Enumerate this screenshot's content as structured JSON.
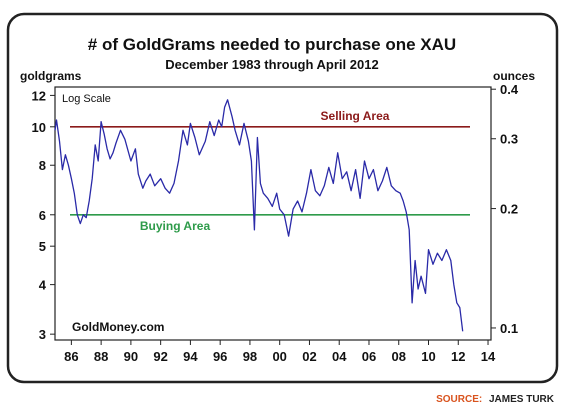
{
  "chart_data": {
    "type": "line",
    "title": "# of GoldGrams needed to purchase one XAU",
    "subtitle": "December 1983 through April 2012",
    "ylabel_left": "goldgrams",
    "ylabel_right": "ounces",
    "scale_note": "Log Scale",
    "watermark": "GoldMoney.com",
    "source_label": "SOURCE:",
    "source_name": "JAMES TURK",
    "xlim": [
      1984.9,
      2014.2
    ],
    "ylim": [
      2.9,
      12.6
    ],
    "y_scale": "log",
    "x_ticks": [
      {
        "value": 1986,
        "label": "86"
      },
      {
        "value": 1988,
        "label": "88"
      },
      {
        "value": 1990,
        "label": "90"
      },
      {
        "value": 1992,
        "label": "92"
      },
      {
        "value": 1994,
        "label": "94"
      },
      {
        "value": 1996,
        "label": "96"
      },
      {
        "value": 1998,
        "label": "98"
      },
      {
        "value": 2000,
        "label": "00"
      },
      {
        "value": 2002,
        "label": "02"
      },
      {
        "value": 2004,
        "label": "04"
      },
      {
        "value": 2006,
        "label": "06"
      },
      {
        "value": 2008,
        "label": "08"
      },
      {
        "value": 2010,
        "label": "10"
      },
      {
        "value": 2012,
        "label": "12"
      },
      {
        "value": 2014,
        "label": "14"
      }
    ],
    "y_ticks_left": [
      {
        "value": 3,
        "label": "3"
      },
      {
        "value": 4,
        "label": "4"
      },
      {
        "value": 5,
        "label": "5"
      },
      {
        "value": 6,
        "label": "6"
      },
      {
        "value": 8,
        "label": "8"
      },
      {
        "value": 10,
        "label": "10"
      },
      {
        "value": 12,
        "label": "12"
      }
    ],
    "y_ticks_right": [
      {
        "value": 3.11,
        "label": "0.1"
      },
      {
        "value": 6.22,
        "label": "0.2"
      },
      {
        "value": 9.33,
        "label": "0.3"
      },
      {
        "value": 12.44,
        "label": "0.4"
      }
    ],
    "reference_lines": [
      {
        "name": "Selling Area",
        "value": 10,
        "color": "#8b1a1a"
      },
      {
        "name": "Buying Area",
        "value": 6,
        "color": "#2e9b4a"
      }
    ],
    "series": [
      {
        "color": "#2a2aa8",
        "x": [
          1984.9,
          1985.0,
          1985.2,
          1985.4,
          1985.6,
          1985.8,
          1986.0,
          1986.2,
          1986.4,
          1986.6,
          1986.8,
          1987.0,
          1987.2,
          1987.4,
          1987.6,
          1987.8,
          1988.0,
          1988.2,
          1988.4,
          1988.6,
          1988.8,
          1989.0,
          1989.3,
          1989.6,
          1990.0,
          1990.3,
          1990.5,
          1990.8,
          1991.0,
          1991.3,
          1991.6,
          1992.0,
          1992.3,
          1992.6,
          1992.9,
          1993.2,
          1993.5,
          1993.8,
          1994.0,
          1994.3,
          1994.6,
          1995.0,
          1995.3,
          1995.6,
          1995.9,
          1996.1,
          1996.3,
          1996.5,
          1996.8,
          1997.0,
          1997.3,
          1997.6,
          1997.9,
          1998.1,
          1998.3,
          1998.5,
          1998.7,
          1998.9,
          1999.2,
          1999.5,
          1999.8,
          2000.0,
          2000.3,
          2000.6,
          2000.9,
          2001.2,
          2001.5,
          2001.8,
          2002.1,
          2002.4,
          2002.7,
          2003.0,
          2003.3,
          2003.6,
          2003.9,
          2004.2,
          2004.5,
          2004.8,
          2005.1,
          2005.4,
          2005.7,
          2006.0,
          2006.3,
          2006.6,
          2006.9,
          2007.2,
          2007.5,
          2007.8,
          2008.1,
          2008.3,
          2008.5,
          2008.7,
          2008.9,
          2009.1,
          2009.3,
          2009.5,
          2009.8,
          2010.0,
          2010.3,
          2010.6,
          2010.9,
          2011.2,
          2011.5,
          2011.7,
          2011.9,
          2012.1,
          2012.3
        ],
        "values": [
          9.8,
          10.4,
          9.2,
          7.8,
          8.5,
          8.0,
          7.4,
          6.8,
          6.0,
          5.7,
          6.0,
          5.9,
          6.5,
          7.4,
          9.0,
          8.2,
          10.3,
          9.6,
          8.8,
          8.3,
          8.6,
          9.1,
          9.8,
          9.3,
          8.2,
          8.8,
          7.6,
          7.0,
          7.3,
          7.6,
          7.1,
          7.4,
          7.0,
          6.8,
          7.2,
          8.2,
          9.8,
          9.0,
          10.2,
          9.4,
          8.5,
          9.2,
          10.3,
          9.5,
          10.4,
          10.0,
          11.2,
          11.7,
          10.6,
          9.8,
          9.0,
          10.2,
          9.2,
          8.2,
          5.5,
          9.4,
          7.2,
          6.8,
          6.6,
          6.3,
          6.8,
          6.2,
          6.0,
          5.3,
          6.2,
          6.5,
          6.1,
          6.8,
          7.8,
          6.9,
          6.7,
          7.1,
          7.9,
          7.2,
          8.6,
          7.4,
          7.7,
          6.9,
          7.8,
          6.6,
          8.2,
          7.4,
          7.8,
          6.9,
          7.3,
          7.9,
          7.1,
          6.9,
          6.8,
          6.5,
          6.1,
          5.5,
          3.6,
          4.6,
          3.9,
          4.2,
          3.8,
          4.9,
          4.5,
          4.8,
          4.6,
          4.9,
          4.6,
          4.0,
          3.6,
          3.5,
          3.05
        ]
      }
    ],
    "grid": false,
    "legend": "none"
  }
}
